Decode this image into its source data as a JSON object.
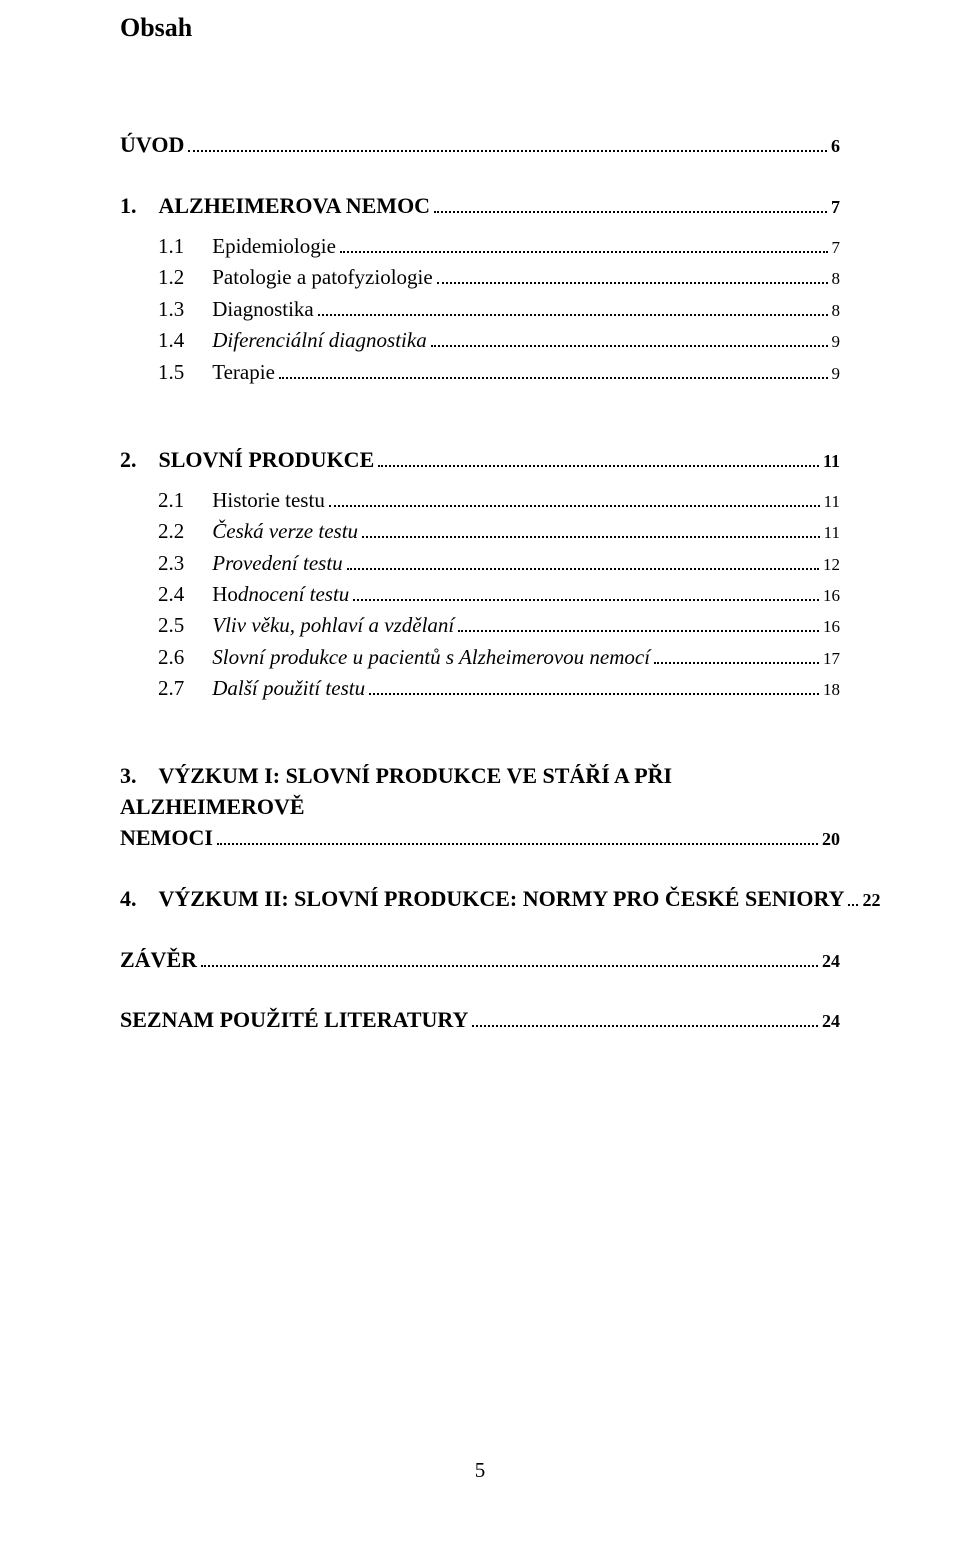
{
  "heading": "Obsah",
  "page_number": "5",
  "toc": [
    {
      "level": 0,
      "label": "ÚVOD",
      "page": "6",
      "italic": false,
      "gap_before": "top"
    },
    {
      "level": 0,
      "label": "1. ALZHEIMEROVA NEMOC",
      "page": "7",
      "italic": false,
      "gap_before": "none"
    },
    {
      "level": 1,
      "num": "1.1",
      "label": "Epidemiologie",
      "page": "7",
      "italic": false
    },
    {
      "level": 1,
      "num": "1.2",
      "label": "Patologie a patofyziologie",
      "page": "8",
      "italic": false
    },
    {
      "level": 1,
      "num": "1.3",
      "label": "Diagnostika",
      "page": "8",
      "italic": false
    },
    {
      "level": 1,
      "num": "1.4",
      "label": "Diferenciální diagnostika",
      "page": "9",
      "italic": true
    },
    {
      "level": 1,
      "num": "1.5",
      "label": "Terapie",
      "page": "9",
      "italic": false
    },
    {
      "level": 0,
      "label": "2. SLOVNÍ PRODUKCE",
      "page": "11",
      "italic": false,
      "gap_before": "group"
    },
    {
      "level": 1,
      "num": "2.1",
      "label": "Historie testu",
      "page": "11",
      "italic": false
    },
    {
      "level": 1,
      "num": "2.2",
      "label": "Česká verze testu",
      "page": "11",
      "italic": true
    },
    {
      "level": 1,
      "num": "2.3",
      "label": "Provedení testu",
      "page": "12",
      "italic": true
    },
    {
      "level": 1,
      "num": "2.4",
      "label": "Hodnocení testu",
      "page": "16",
      "italic_partial": "dnocení testu",
      "prefix": "Ho"
    },
    {
      "level": 1,
      "num": "2.5",
      "label": "Vliv věku, pohlaví a vzdělaní",
      "page": "16",
      "italic": true
    },
    {
      "level": 1,
      "num": "2.6",
      "label": "Slovní produkce u pacientů s Alzheimerovou nemocí",
      "page": "17",
      "italic": true
    },
    {
      "level": 1,
      "num": "2.7",
      "label": "Další použití testu",
      "page": "18",
      "italic": true
    },
    {
      "level": 0,
      "label": "3. VÝZKUM I: SLOVNÍ PRODUKCE VE STÁŘÍ A PŘI ALZHEIMEROVĚ NEMOCI",
      "page": "20",
      "italic": false,
      "gap_before": "group",
      "wrap": true
    },
    {
      "level": 0,
      "label": "4. VÝZKUM II: SLOVNÍ PRODUKCE: NORMY PRO ČESKÉ SENIORY",
      "page": "22",
      "italic": false,
      "gap_before": "none"
    },
    {
      "level": 0,
      "label": "ZÁVĚR",
      "page": "24",
      "italic": false,
      "gap_before": "none"
    },
    {
      "level": 0,
      "label": "SEZNAM POUŽITÉ LITERATURY",
      "page": "24",
      "italic": false,
      "gap_before": "none"
    }
  ]
}
